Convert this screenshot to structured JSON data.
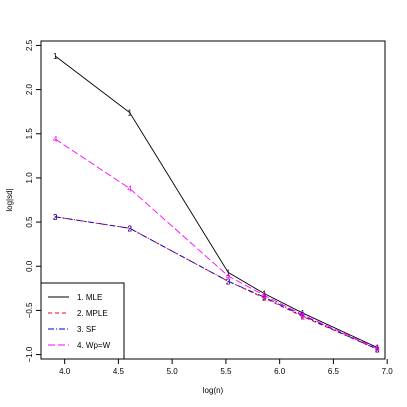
{
  "chart_data": {
    "type": "line",
    "title": "",
    "xlabel": "log(n)",
    "ylabel": "log|sd|",
    "xlim": [
      3.78,
      6.98
    ],
    "ylim": [
      -1.05,
      2.55
    ],
    "x_ticks": [
      4.0,
      4.5,
      5.0,
      5.5,
      6.0,
      6.5,
      7.0
    ],
    "x_tick_labels": [
      "4.0",
      "4.5",
      "5.0",
      "5.5",
      "6.0",
      "6.5",
      "7.0"
    ],
    "y_ticks": [
      -1.0,
      -0.5,
      0.0,
      0.5,
      1.0,
      1.5,
      2.0,
      2.5
    ],
    "y_tick_labels": [
      "−1.0",
      "−0.5",
      "0.0",
      "0.5",
      "1.0",
      "1.5",
      "2.0",
      "2.5"
    ],
    "x": [
      3.912,
      4.605,
      5.521,
      5.858,
      6.215,
      6.908
    ],
    "series": [
      {
        "name": "1. MLE",
        "marker": "1",
        "color": "#000000",
        "dash": "",
        "values": [
          2.38,
          1.74,
          -0.07,
          -0.31,
          -0.53,
          -0.92
        ]
      },
      {
        "name": "2. MPLE",
        "marker": "2",
        "color": "#ff0000",
        "dash": "4,3",
        "values": [
          0.56,
          0.43,
          -0.17,
          -0.36,
          -0.57,
          -0.94
        ]
      },
      {
        "name": "3. SF",
        "marker": "3",
        "color": "#0000cc",
        "dash": "6,2,1,2",
        "values": [
          0.56,
          0.43,
          -0.17,
          -0.35,
          -0.56,
          -0.94
        ]
      },
      {
        "name": "4. Wp=W",
        "marker": "4",
        "color": "#ff00ff",
        "dash": "7,3",
        "values": [
          1.44,
          0.88,
          -0.11,
          -0.33,
          -0.55,
          -0.93
        ]
      }
    ],
    "legend_position": "bottom-left",
    "grid": false
  }
}
